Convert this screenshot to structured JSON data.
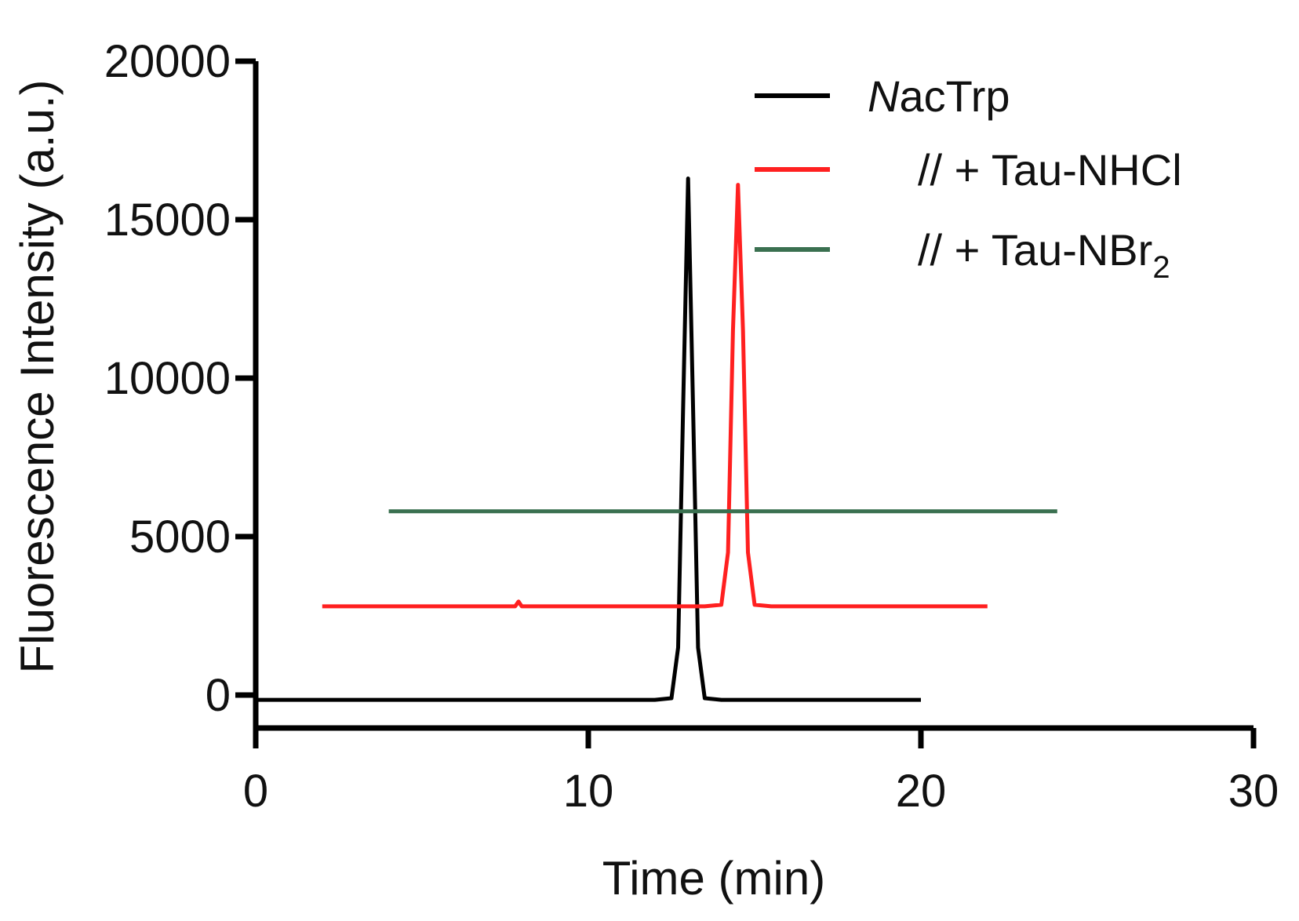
{
  "chart_data": {
    "type": "line",
    "title": "",
    "xlabel": "Time (min)",
    "ylabel": "Fluorescence Intensity (a.u.)",
    "xlim": [
      0,
      30
    ],
    "ylim": [
      -1000,
      20000
    ],
    "xticks": [
      0,
      10,
      20,
      30
    ],
    "yticks": [
      0,
      5000,
      10000,
      15000,
      20000
    ],
    "xtick_labels": [
      "0",
      "10",
      "20",
      "30"
    ],
    "ytick_labels": [
      "0",
      "5000",
      "10000",
      "15000",
      "20000"
    ],
    "grid": false,
    "legend_position": "top-right",
    "series": [
      {
        "name": "NacTrp",
        "name_italic": "N",
        "name_rest": "acTrp",
        "color": "#000000",
        "x": [
          0,
          5,
          10,
          12.0,
          12.5,
          12.7,
          12.85,
          13.0,
          13.15,
          13.3,
          13.5,
          14.0,
          17,
          20
        ],
        "y": [
          -150,
          -150,
          -150,
          -150,
          -100,
          1500,
          9000,
          16300,
          9000,
          1500,
          -100,
          -150,
          -150,
          -150
        ]
      },
      {
        "name": "// + Tau-NHCl",
        "color": "#ff2020",
        "x": [
          2,
          5,
          7.8,
          7.9,
          8.0,
          10,
          13.5,
          14.0,
          14.2,
          14.35,
          14.5,
          14.65,
          14.8,
          15.0,
          15.5,
          18,
          22
        ],
        "y": [
          2800,
          2800,
          2800,
          2950,
          2800,
          2800,
          2800,
          2850,
          4500,
          11500,
          16100,
          11500,
          4500,
          2850,
          2800,
          2800,
          2800
        ]
      },
      {
        "name": "// + Tau-NBr",
        "name_subscript": "2",
        "color": "#3a7050",
        "x": [
          4,
          10,
          15,
          20,
          24.1
        ],
        "y": [
          5800,
          5800,
          5800,
          5800,
          5800
        ]
      }
    ]
  }
}
